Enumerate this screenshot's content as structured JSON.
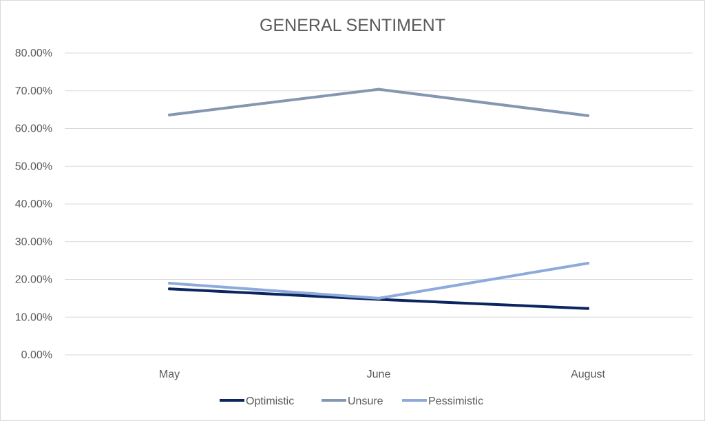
{
  "chart_data": {
    "type": "line",
    "title": "GENERAL SENTIMENT",
    "xlabel": "",
    "ylabel": "",
    "categories": [
      "May",
      "June",
      "August"
    ],
    "ylim": [
      0,
      0.8
    ],
    "yticks": [
      0,
      0.1,
      0.2,
      0.3,
      0.4,
      0.5,
      0.6,
      0.7,
      0.8
    ],
    "ytick_labels": [
      "0.00%",
      "10.00%",
      "20.00%",
      "30.00%",
      "40.00%",
      "50.00%",
      "60.00%",
      "70.00%",
      "80.00%"
    ],
    "grid": true,
    "legend": "bottom",
    "series": [
      {
        "name": "Optimistic",
        "color": "#0b2560",
        "values": [
          0.175,
          0.147,
          0.123
        ]
      },
      {
        "name": "Unsure",
        "color": "#8497b0",
        "values": [
          0.636,
          0.704,
          0.634
        ]
      },
      {
        "name": "Pessimistic",
        "color": "#8ea9db",
        "values": [
          0.19,
          0.15,
          0.243
        ]
      }
    ]
  }
}
